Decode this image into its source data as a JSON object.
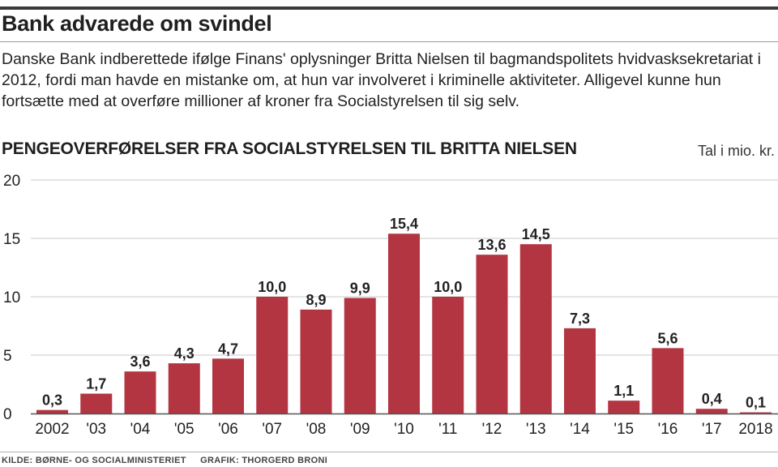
{
  "headline": "Bank advarede om svindel",
  "intro": "Danske Bank indberettede ifølge Finans' oplysninger Britta Nielsen til bagmandspolitets hvidvasksekretariat i 2012, fordi man havde en mistanke om, at hun var involveret i kriminelle aktiviteter. Alligevel kunne hun fortsætte med at overføre millioner af kroner fra Socialstyrelsen til sig selv.",
  "footer": {
    "source": "KILDE: BØRNE- OG SOCIALMINISTERIET",
    "credit": "GRAFIK: THORGERD BRONI"
  },
  "colors": {
    "bar": "#b33541",
    "grid": "#c9c9c9",
    "baseline": "#555555",
    "text": "#222222"
  },
  "chart_data": {
    "type": "bar",
    "title": "PENGEOVERFØRELSER FRA SOCIALSTYRELSEN TIL BRITTA NIELSEN",
    "unit_label": "Tal i mio. kr.",
    "categories": [
      "2002",
      "'03",
      "'04",
      "'05",
      "'06",
      "'07",
      "'08",
      "'09",
      "'10",
      "'11",
      "'12",
      "'13",
      "'14",
      "'15",
      "'16",
      "'17",
      "2018"
    ],
    "values": [
      0.3,
      1.7,
      3.6,
      4.3,
      4.7,
      10.0,
      8.9,
      9.9,
      15.4,
      10.0,
      13.6,
      14.5,
      7.3,
      1.1,
      5.6,
      0.4,
      0.1
    ],
    "value_labels": [
      "0,3",
      "1,7",
      "3,6",
      "4,3",
      "4,7",
      "10,0",
      "8,9",
      "9,9",
      "15,4",
      "10,0",
      "13,6",
      "14,5",
      "7,3",
      "1,1",
      "5,6",
      "0,4",
      "0,1"
    ],
    "ylim": [
      0,
      20
    ],
    "yticks": [
      0,
      5,
      10,
      15,
      20
    ],
    "grid": true,
    "legend": "none"
  }
}
